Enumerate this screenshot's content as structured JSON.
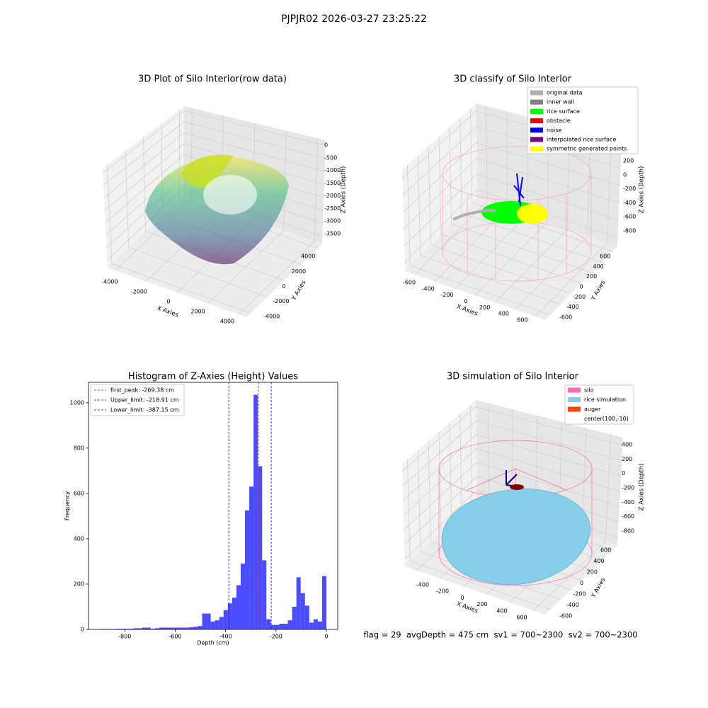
{
  "title": "PJPJR02 2026-03-27 23:25:22",
  "footer": "flag = 29  avgDepth = 475 cm  sv1 = 700~2300  sv2 = 700~2300",
  "chart_data": [
    {
      "type": "scatter3d",
      "title": "3D Plot of Silo Interior(row data)",
      "x_label": "X Axies",
      "y_label": "Y Axies",
      "z_label": "Z Axies (Depth)",
      "xlim": [
        -4500,
        4500
      ],
      "ylim": [
        -4500,
        4500
      ],
      "zlim": [
        -3800,
        200
      ],
      "xticks": [
        -4000,
        -2000,
        0,
        2000,
        4000
      ],
      "yticks": [
        -4000,
        -2000,
        0,
        2000,
        4000
      ],
      "zticks": [
        0,
        -500,
        -1000,
        -1500,
        -2000,
        -2500,
        -3000,
        -3500
      ]
    },
    {
      "type": "scatter3d",
      "title": "3D classify of Silo Interior",
      "x_label": "X Axies",
      "y_label": "Y Axies",
      "z_label": "Z Axies (Depth)",
      "xlim": [
        -700,
        700
      ],
      "ylim": [
        -700,
        700
      ],
      "zlim": [
        -900,
        300
      ],
      "xticks": [
        -600,
        -400,
        -200,
        0,
        200,
        400,
        600
      ],
      "yticks": [
        -600,
        -400,
        -200,
        0,
        200,
        400,
        600
      ],
      "zticks": [
        200,
        0,
        -200,
        -400,
        -600,
        -800
      ],
      "series": [
        {
          "name": "original data",
          "color": "#b0b0b0"
        },
        {
          "name": "inner wall",
          "color": "#808080"
        },
        {
          "name": "rice surface",
          "color": "#00ff00"
        },
        {
          "name": "obstacle",
          "color": "#ff0000"
        },
        {
          "name": "noise",
          "color": "#0000ff"
        },
        {
          "name": "interpolated rice surface",
          "color": "#800080"
        },
        {
          "name": "symmetric generated points",
          "color": "#ffff00"
        }
      ]
    },
    {
      "type": "histogram",
      "title": "Histogram of Z-Axies (Height) Values",
      "x_label": "Depth (cm)",
      "y_label": "Frequency",
      "color": "#0000ff",
      "alpha": 0.7,
      "bins": [
        -901,
        -884,
        -867,
        -850,
        -833,
        -816,
        -799,
        -782,
        -765,
        -748,
        -731,
        -714,
        -697,
        -680,
        -663,
        -646,
        -629,
        -612,
        -595,
        -578,
        -561,
        -544,
        -527,
        -510,
        -493,
        -476,
        -459,
        -442,
        -425,
        -408,
        -391,
        -374,
        -357,
        -340,
        -323,
        -306,
        -289,
        -272,
        -255,
        -238,
        -221,
        -204,
        -187,
        -170,
        -153,
        -136,
        -119,
        -102,
        -85,
        -68,
        -51,
        -34,
        -17,
        0
      ],
      "values": [
        2,
        2,
        2,
        2,
        3,
        3,
        3,
        3,
        5,
        5,
        8,
        8,
        3,
        5,
        8,
        8,
        8,
        8,
        8,
        8,
        8,
        10,
        12,
        15,
        70,
        70,
        35,
        40,
        55,
        85,
        115,
        140,
        195,
        290,
        525,
        630,
        1035,
        720,
        305,
        45,
        20,
        20,
        25,
        25,
        40,
        100,
        230,
        160,
        105,
        30,
        45,
        35,
        235
      ],
      "xlim": [
        -944,
        45
      ],
      "ylim": [
        0,
        1090
      ],
      "xticks": [
        -800,
        -600,
        -400,
        -200,
        0
      ],
      "yticks": [
        0,
        200,
        400,
        600,
        800,
        1000
      ],
      "lines": [
        {
          "label": "first_peak: -269.38 cm",
          "value": -269.38,
          "color": "#ff0000"
        },
        {
          "label": "Upper_limit: -218.91 cm",
          "value": -218.91,
          "color": "#0000ff"
        },
        {
          "label": "Lower_limit: -387.15 cm",
          "value": -387.15,
          "color": "#0000ff"
        }
      ],
      "legend": "upper left"
    },
    {
      "type": "surface3d",
      "title": "3D simulation of Silo Interior",
      "x_label": "X Axies",
      "y_label": "Y Axies",
      "z_label": "Z Axies (Depth)",
      "xlim": [
        -500,
        700
      ],
      "ylim": [
        -700,
        700
      ],
      "zlim": [
        -900,
        500
      ],
      "xticks": [
        -400,
        -200,
        0,
        200,
        400,
        600
      ],
      "yticks": [
        -600,
        -400,
        -200,
        0,
        200,
        400,
        600
      ],
      "zticks": [
        400,
        200,
        0,
        -200,
        -400,
        -600,
        -800
      ],
      "series": [
        {
          "name": "silo",
          "color": "#ff69b4"
        },
        {
          "name": "rice simulation",
          "color": "#87ceeb"
        },
        {
          "name": "auger",
          "color": "#ff4500"
        },
        {
          "name": "center(100,-10)"
        }
      ]
    }
  ]
}
